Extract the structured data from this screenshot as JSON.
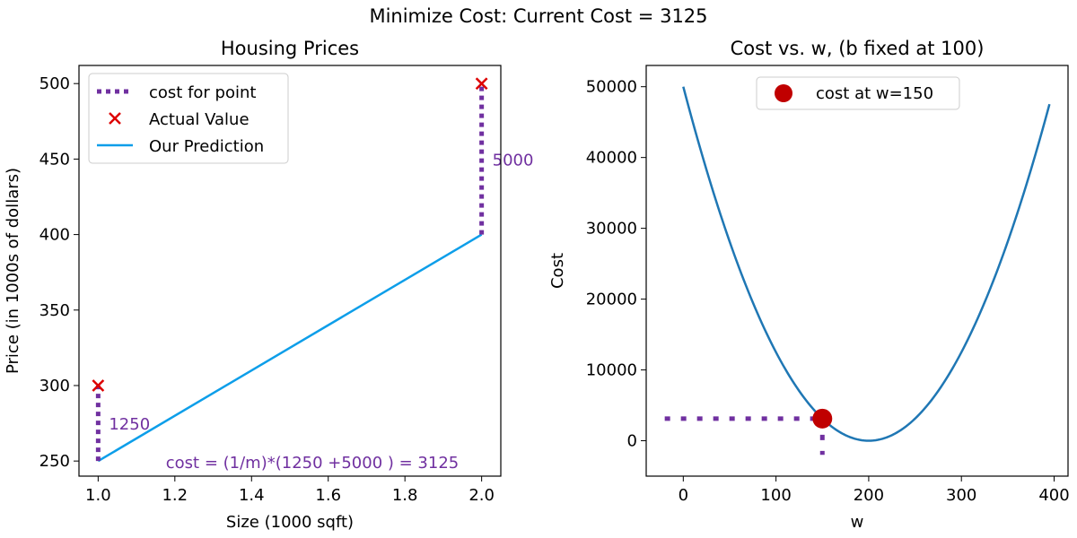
{
  "suptitle": "Minimize Cost: Current Cost = 3125",
  "colors": {
    "purple": "#7030A0",
    "red": "#DD0000",
    "blue": "#0D9EE9",
    "curve": "#1F77B4",
    "dot": "#C00000"
  },
  "chart_data": [
    {
      "type": "line",
      "title": "Housing Prices",
      "xlabel": "Size (1000 sqft)",
      "ylabel": "Price (in 1000s of dollars)",
      "xlim": [
        0.95,
        2.05
      ],
      "ylim": [
        240,
        512
      ],
      "x_ticks": [
        1.0,
        1.2,
        1.4,
        1.6,
        1.8,
        2.0
      ],
      "x_tick_labels": [
        "1.0",
        "1.2",
        "1.4",
        "1.6",
        "1.8",
        "2.0"
      ],
      "y_ticks": [
        250,
        300,
        350,
        400,
        450,
        500
      ],
      "y_tick_labels": [
        "250",
        "300",
        "350",
        "400",
        "450",
        "500"
      ],
      "legend": {
        "position": "upper-left",
        "entries": [
          "cost for point",
          "Actual Value",
          "Our Prediction"
        ]
      },
      "actual": {
        "name": "Actual Value",
        "x": [
          1.0,
          2.0
        ],
        "y": [
          300,
          500
        ]
      },
      "prediction": {
        "name": "Our Prediction",
        "x": [
          1.0,
          2.0
        ],
        "y": [
          250,
          400
        ]
      },
      "cost_segments": [
        {
          "x": 1.0,
          "y_from": 250,
          "y_to": 300,
          "label": "1250"
        },
        {
          "x": 2.0,
          "y_from": 400,
          "y_to": 500,
          "label": "5000"
        }
      ],
      "annotation": "cost = (1/m)*(1250 +5000 ) = 3125"
    },
    {
      "type": "line",
      "title": "Cost vs. w, (b fixed at 100)",
      "xlabel": "w",
      "ylabel": "Cost",
      "xlim": [
        -40,
        415
      ],
      "ylim": [
        -5000,
        53000
      ],
      "x_ticks": [
        0,
        100,
        200,
        300,
        400
      ],
      "x_tick_labels": [
        "0",
        "100",
        "200",
        "300",
        "400"
      ],
      "y_ticks": [
        0,
        10000,
        20000,
        30000,
        40000,
        50000
      ],
      "y_tick_labels": [
        "0",
        "10000",
        "20000",
        "30000",
        "40000",
        "50000"
      ],
      "curve": {
        "w_range": [
          0,
          395
        ],
        "min_w": 200,
        "coef": 1.25
      },
      "marker": {
        "name": "cost at w=150",
        "w": 150,
        "cost": 3125
      },
      "legend": {
        "position": "upper-center",
        "entries": [
          "cost at w=150"
        ]
      },
      "guide": {
        "x_start": -20,
        "y_bottom": -2000
      }
    }
  ]
}
